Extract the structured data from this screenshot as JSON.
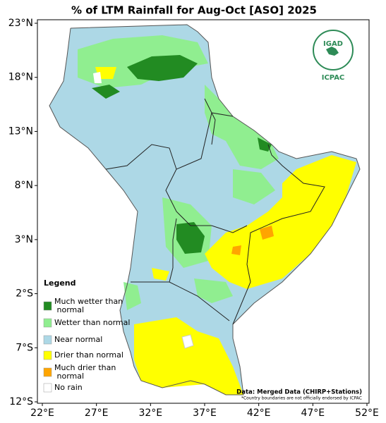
{
  "map": {
    "title": "% of LTM Rainfall for Aug-Oct [ASO] 2025",
    "lon_ticks": [
      "22°E",
      "27°E",
      "32°E",
      "37°E",
      "42°E",
      "47°E",
      "52°E"
    ],
    "lat_ticks": [
      "23°N",
      "18°N",
      "13°N",
      "8°N",
      "3°N",
      "2°S",
      "7°S",
      "12°S"
    ],
    "legend": {
      "title": "Legend",
      "items": [
        {
          "label": "Much wetter than normal",
          "color": "#228b22"
        },
        {
          "label": "Wetter than normal",
          "color": "#90ee90"
        },
        {
          "label": "Near normal",
          "color": "#add8e6"
        },
        {
          "label": "Drier than normal",
          "color": "#ffff00"
        },
        {
          "label": "Much drier than normal",
          "color": "#ffa500"
        },
        {
          "label": "No rain",
          "color": "#ffffff"
        }
      ]
    },
    "source": "Data: Merged Data (CHIRP+Stations)",
    "disclaimer": "*Country boundaries are not officially endorsed by ICPAC",
    "logo": {
      "name": "IGAD",
      "org": "ICPAC"
    }
  }
}
